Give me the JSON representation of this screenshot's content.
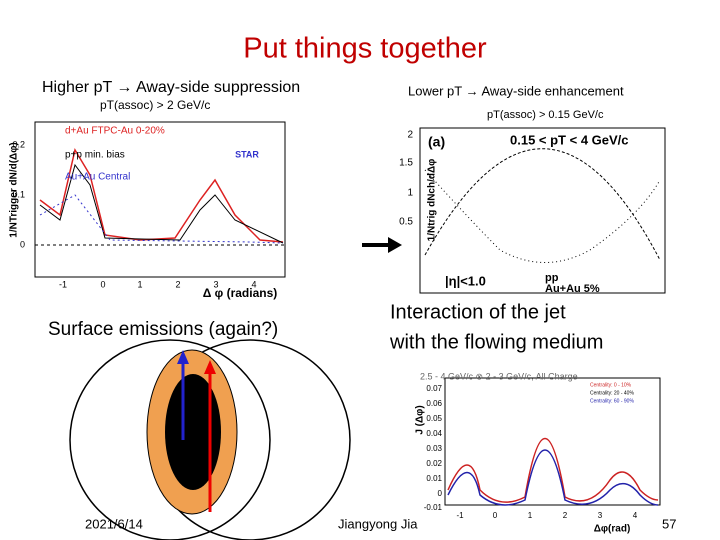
{
  "title": "Put things together",
  "left": {
    "heading": "Higher pT → Away-side suppression",
    "subheading": "pT(assoc) > 2 GeV/c",
    "plot": {
      "ylabel": "1/NTrigger dN/d(Δφ)",
      "xlabel": "Δ φ (radians)",
      "yticks": [
        "0.2",
        "0.1",
        "0"
      ],
      "xticks": [
        "-1",
        "0",
        "1",
        "2",
        "3",
        "4"
      ],
      "legend": [
        "d+Au FTPC-Au 0-20%",
        "p+p min. bias",
        "Au+Au Central"
      ],
      "logo": "STAR"
    }
  },
  "right": {
    "heading": "Lower pT → Away-side enhancement",
    "subheading": "pT(assoc) > 0.15 GeV/c",
    "plot": {
      "panel": "(a)",
      "range": "0.15 < pT < 4 GeV/c",
      "ylabel": "1/Ntrig dNch/dΔφ",
      "yticks": [
        "2",
        "1.5",
        "1",
        "0.5"
      ],
      "cut": "|η|<1.0",
      "legend": [
        "pp",
        "Au+Au 5%"
      ]
    }
  },
  "surface": "Surface emissions (again?)",
  "interaction": [
    "Interaction of the jet",
    "with the flowing medium"
  ],
  "bottom_plot": {
    "title": "2.5 - 4 GeV/c ⊗ 2 - 3 GeV/c, All Charge",
    "ylabel": "J (Δφ)",
    "xlabel": "Δφ(rad)",
    "yticks": [
      "0.07",
      "0.06",
      "0.05",
      "0.04",
      "0.03",
      "0.02",
      "0.01",
      "0",
      "-0.01"
    ],
    "xticks": [
      "-1",
      "0",
      "1",
      "2",
      "3",
      "4"
    ],
    "legend": [
      "Centrality: 0 - 10%",
      "Centrality: 20 - 40%",
      "Centrality: 60 - 90%"
    ]
  },
  "footer": {
    "date": "2021/6/14",
    "author": "Jiangyong Jia",
    "page": "57"
  }
}
